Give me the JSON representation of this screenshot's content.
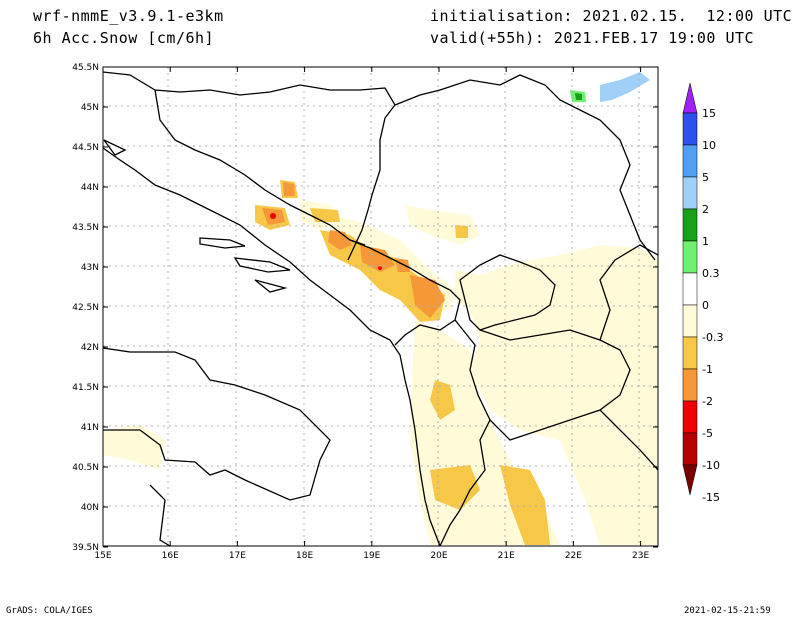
{
  "header": {
    "model": "wrf-nmmE_v3.9.1-e3km",
    "field": "6h Acc.Snow [cm/6h]",
    "init": "initialisation: 2021.02.15.  12:00 UTC",
    "valid": "valid(+55h): 2021.FEB.17 19:00 UTC"
  },
  "footer": {
    "credit": "GrADS: COLA/IGES",
    "timestamp": "2021-02-15-21:59"
  },
  "axes": {
    "lat_labels": [
      "45.5N",
      "45N",
      "44.5N",
      "44N",
      "43.5N",
      "43N",
      "42.5N",
      "42N",
      "41.5N",
      "41N",
      "40.5N",
      "40N",
      "39.5N"
    ],
    "lon_labels": [
      "15E",
      "16E",
      "17E",
      "18E",
      "19E",
      "20E",
      "21E",
      "22E",
      "23E"
    ]
  },
  "colorbar": {
    "labels": [
      "15",
      "10",
      "5",
      "2",
      "1",
      "0.3",
      "0",
      "-0.3",
      "-1",
      "-2",
      "-5",
      "-10",
      "-15"
    ],
    "colors": [
      "#a020f0",
      "#2f50f0",
      "#4fa0f0",
      "#a0d0f8",
      "#18a018",
      "#70f070",
      "#ffffff",
      "#fffad8",
      "#f7c848",
      "#f79838",
      "#f00000",
      "#b80000",
      "#7a0000"
    ]
  },
  "map_colors": {
    "snow_light": "#fffad8",
    "snow_1": "#f7c848",
    "snow_2": "#f79838",
    "snow_5": "#f00000",
    "neg_green": "#70f070",
    "neg_dkgreen": "#18a018",
    "neg_lblue": "#a0d0f8"
  }
}
